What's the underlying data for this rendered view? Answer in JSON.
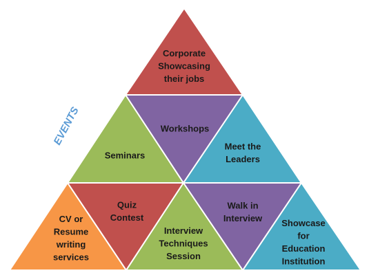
{
  "side_label": {
    "text": "EVENTS",
    "color": "#5b9bd5"
  },
  "triangles": [
    {
      "id": "corporate",
      "label_lines": [
        "Corporate",
        "Showcasing",
        "their jobs"
      ],
      "color": "#c0504d"
    },
    {
      "id": "seminars",
      "label_lines": [
        "Seminars"
      ],
      "color": "#9bbb59"
    },
    {
      "id": "workshops",
      "label_lines": [
        "Workshops"
      ],
      "color": "#8064a2"
    },
    {
      "id": "meet-leaders",
      "label_lines": [
        "Meet the",
        "Leaders"
      ],
      "color": "#4bacc6"
    },
    {
      "id": "cv-resume",
      "label_lines": [
        "CV or",
        "Resume",
        "writing",
        "services"
      ],
      "color": "#f79646"
    },
    {
      "id": "quiz",
      "label_lines": [
        "Quiz",
        "Contest"
      ],
      "color": "#c0504d"
    },
    {
      "id": "interview-techniques",
      "label_lines": [
        "Interview",
        "Techniques",
        "Session"
      ],
      "color": "#9bbb59"
    },
    {
      "id": "walk-in",
      "label_lines": [
        "Walk in",
        "Interview"
      ],
      "color": "#8064a2"
    },
    {
      "id": "showcase-education",
      "label_lines": [
        "Showcase",
        "for",
        "Education",
        "Institution"
      ],
      "color": "#4bacc6"
    }
  ]
}
